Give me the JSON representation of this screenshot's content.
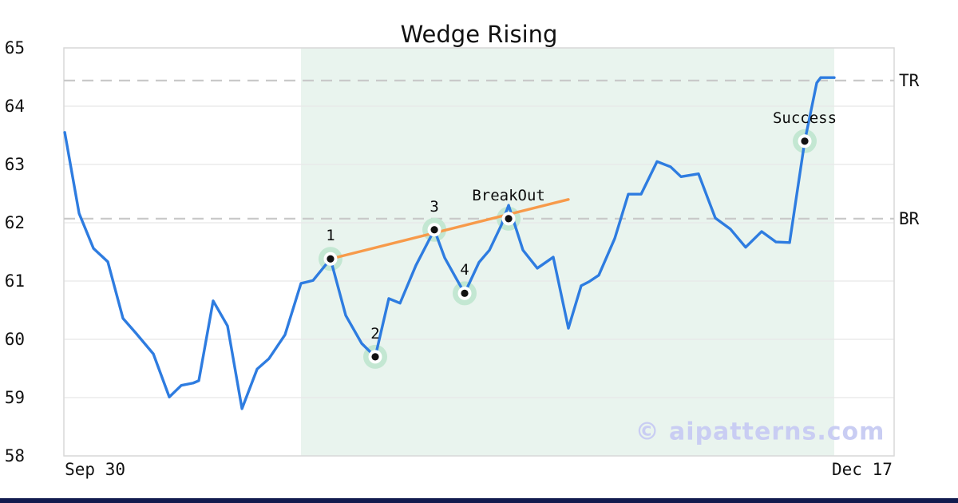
{
  "title": "Wedge Rising",
  "watermark": "© aipatterns.com",
  "colors": {
    "price_line": "#2e7ce0",
    "trend_line": "#f79a4a",
    "zone_fill": "#e9f4ee",
    "marker_halo": "#c3e7d2",
    "marker_ring": "#ffffff",
    "marker_dot": "#111111",
    "dashed_level": "#c9c9c9",
    "grid": "#e8e8e8",
    "plot_border": "#d9d9d9",
    "text": "#121212",
    "watermark": "#c9cdf3",
    "footer_bar": "#111b4e"
  },
  "chart_data": {
    "type": "line",
    "title": "Wedge Rising",
    "x_axis": {
      "range": [
        -3.17,
        81.25
      ],
      "ticks": [
        {
          "pos": 0,
          "label": "Sep 30"
        },
        {
          "pos": 78,
          "label": "Dec 17"
        }
      ]
    },
    "y_axis": {
      "range": [
        58,
        65
      ],
      "ticks": [
        58,
        59,
        60,
        61,
        62,
        63,
        64,
        65
      ]
    },
    "grid": true,
    "series": [
      {
        "name": "price",
        "points": [
          [
            -3.08,
            63.55
          ],
          [
            -1.62,
            62.16
          ],
          [
            -0.16,
            61.56
          ],
          [
            1.3,
            61.33
          ],
          [
            2.84,
            60.36
          ],
          [
            4.14,
            60.11
          ],
          [
            5.93,
            59.75
          ],
          [
            7.55,
            59.01
          ],
          [
            8.77,
            59.21
          ],
          [
            9.98,
            59.25
          ],
          [
            10.55,
            59.29
          ],
          [
            12.01,
            60.66
          ],
          [
            13.47,
            60.23
          ],
          [
            14.94,
            58.81
          ],
          [
            16.48,
            59.49
          ],
          [
            17.69,
            59.67
          ],
          [
            19.32,
            60.08
          ],
          [
            20.94,
            60.96
          ],
          [
            22.16,
            61.01
          ],
          [
            23.94,
            61.38
          ],
          [
            25.49,
            60.41
          ],
          [
            27.11,
            59.93
          ],
          [
            28.49,
            59.7
          ],
          [
            29.87,
            60.7
          ],
          [
            31.01,
            60.62
          ],
          [
            32.63,
            61.27
          ],
          [
            34.5,
            61.88
          ],
          [
            35.55,
            61.4
          ],
          [
            36.77,
            61.03
          ],
          [
            37.58,
            60.79
          ],
          [
            39.04,
            61.32
          ],
          [
            40.1,
            61.53
          ],
          [
            41.31,
            61.96
          ],
          [
            42.05,
            62.3
          ],
          [
            43.51,
            61.53
          ],
          [
            44.97,
            61.22
          ],
          [
            46.59,
            61.41
          ],
          [
            48.13,
            60.19
          ],
          [
            49.43,
            60.92
          ],
          [
            50.24,
            60.99
          ],
          [
            51.22,
            61.1
          ],
          [
            52.84,
            61.73
          ],
          [
            54.22,
            62.49
          ],
          [
            55.52,
            62.49
          ],
          [
            57.14,
            63.05
          ],
          [
            58.52,
            62.96
          ],
          [
            59.58,
            62.79
          ],
          [
            61.36,
            62.84
          ],
          [
            63.07,
            62.08
          ],
          [
            64.61,
            61.89
          ],
          [
            66.15,
            61.58
          ],
          [
            67.78,
            61.85
          ],
          [
            69.24,
            61.67
          ],
          [
            70.62,
            61.66
          ],
          [
            72.16,
            63.4
          ],
          [
            73.38,
            64.4
          ],
          [
            73.78,
            64.49
          ],
          [
            75.16,
            64.49
          ]
        ]
      }
    ],
    "trendline": {
      "from": [
        23.94,
        61.38
      ],
      "to": [
        48.13,
        62.4
      ]
    },
    "levels": [
      {
        "label": "TR",
        "value": 64.44
      },
      {
        "label": "BR",
        "value": 62.07
      }
    ],
    "zone": {
      "from": 20.94,
      "to": 75.16
    },
    "key_points": [
      {
        "label": "1",
        "pos": 23.94,
        "value": 61.38
      },
      {
        "label": "2",
        "pos": 28.49,
        "value": 59.7
      },
      {
        "label": "3",
        "pos": 34.5,
        "value": 61.88
      },
      {
        "label": "4",
        "pos": 37.58,
        "value": 60.79
      },
      {
        "label": "BreakOut",
        "pos": 42.05,
        "value": 62.07
      },
      {
        "label": "Success",
        "pos": 72.16,
        "value": 63.4
      }
    ]
  }
}
